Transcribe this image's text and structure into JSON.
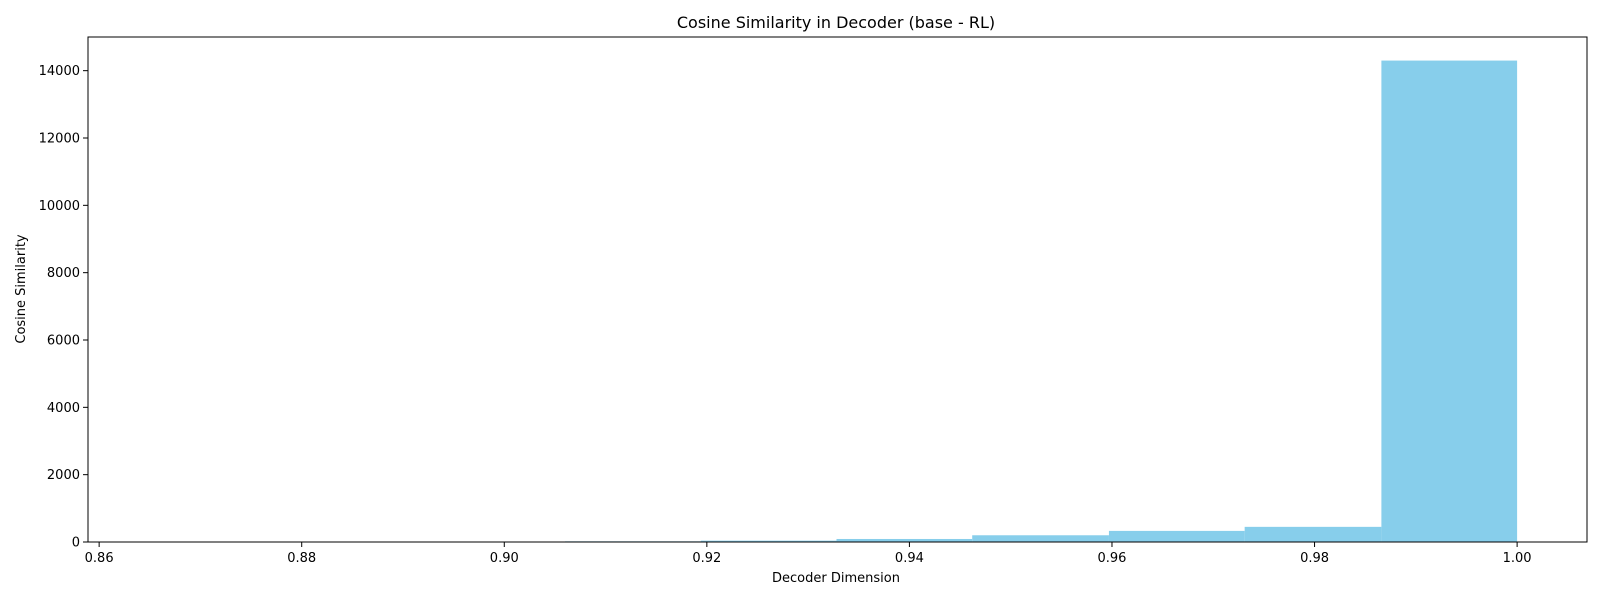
{
  "chart_data": {
    "type": "bar",
    "title": "Cosine Similarity in Decoder (base - RL)",
    "xlabel": "Decoder Dimension",
    "ylabel": "Cosine Similarity",
    "xlim": [
      0.8589,
      1.0069
    ],
    "ylim": [
      0,
      15000
    ],
    "xticks": [
      "0.86",
      "0.88",
      "0.90",
      "0.92",
      "0.94",
      "0.96",
      "0.98",
      "1.00"
    ],
    "xtick_values": [
      0.86,
      0.88,
      0.9,
      0.92,
      0.94,
      0.96,
      0.98,
      1.0
    ],
    "yticks": [
      "0",
      "2000",
      "4000",
      "6000",
      "8000",
      "10000",
      "12000",
      "14000"
    ],
    "ytick_values": [
      0,
      2000,
      4000,
      6000,
      8000,
      10000,
      12000,
      14000
    ],
    "bin_edges": [
      0.8656,
      0.8791,
      0.8925,
      0.906,
      0.9194,
      0.9328,
      0.9462,
      0.9597,
      0.9731,
      0.9866,
      1.0
    ],
    "values": [
      2,
      3,
      6,
      20,
      40,
      90,
      200,
      330,
      450,
      14300
    ],
    "bar_color": "#87CEEB",
    "grid": false,
    "legend": "none"
  }
}
